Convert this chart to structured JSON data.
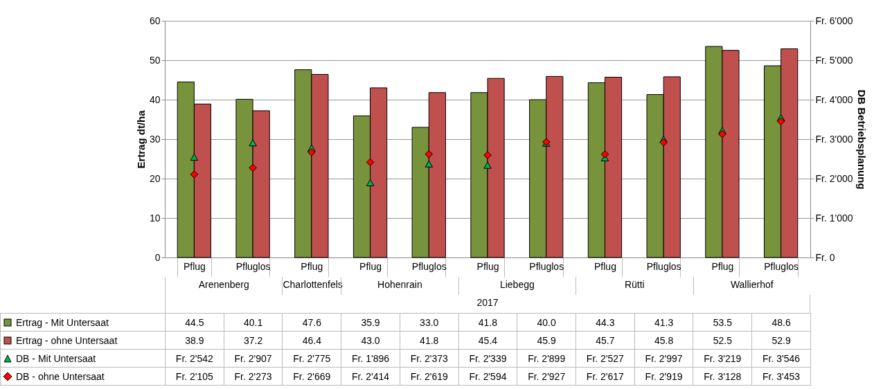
{
  "chart_data": {
    "type": "bar",
    "ylabel": "Ertrag dt/ha",
    "y2label": "DB Betriebsplanung",
    "categories": [
      "Pflug",
      "Pfluglos",
      "Pflug",
      "Pflug",
      "Pfluglos",
      "Pflug",
      "Pfluglos",
      "Pflug",
      "Pfluglos",
      "Pflug",
      "Pfluglos"
    ],
    "annotations": [
      "Arenenberg",
      "Charlottenfels",
      "Hohenrain",
      "Liebegg",
      "Rütti",
      "Wallierhof",
      "2017"
    ],
    "series": [
      {
        "name": "Ertrag - Mit Untersaat",
        "color": "#77933c",
        "values": [
          44.5,
          40.1,
          47.6,
          35.9,
          33.0,
          41.8,
          40.0,
          44.3,
          41.3,
          53.5,
          48.6
        ],
        "value_labels": [
          "44.5",
          "40.1",
          "47.6",
          "35.9",
          "33.0",
          "41.8",
          "40.0",
          "44.3",
          "41.3",
          "53.5",
          "48.6"
        ]
      },
      {
        "name": "Ertrag - ohne Untersaat",
        "color": "#c0504d",
        "values": [
          38.9,
          37.2,
          46.4,
          43.0,
          41.8,
          45.4,
          45.9,
          45.7,
          45.8,
          52.5,
          52.9
        ],
        "value_labels": [
          "38.9",
          "37.2",
          "46.4",
          "43.0",
          "41.8",
          "45.4",
          "45.9",
          "45.7",
          "45.8",
          "52.5",
          "52.9"
        ]
      },
      {
        "name": "DB  - Mit Untersaat",
        "type": "scatter",
        "axis": "y2",
        "marker": "triangle",
        "color": "#00b050",
        "values": [
          2542,
          2907,
          2775,
          1896,
          2373,
          2339,
          2899,
          2527,
          2997,
          3219,
          3546
        ],
        "value_labels": [
          "Fr. 2'542",
          "Fr. 2'907",
          "Fr. 2'775",
          "Fr. 1'896",
          "Fr. 2'373",
          "Fr. 2'339",
          "Fr. 2'899",
          "Fr. 2'527",
          "Fr. 2'997",
          "Fr. 3'219",
          "Fr. 3'546"
        ]
      },
      {
        "name": "DB  - ohne Untersaat",
        "type": "scatter",
        "axis": "y2",
        "marker": "diamond",
        "color": "#ff0000",
        "values": [
          2105,
          2273,
          2669,
          2414,
          2619,
          2594,
          2927,
          2617,
          2919,
          3128,
          3453
        ],
        "value_labels": [
          "Fr. 2'105",
          "Fr. 2'273",
          "Fr. 2'669",
          "Fr. 2'414",
          "Fr. 2'619",
          "Fr. 2'594",
          "Fr. 2'927",
          "Fr. 2'617",
          "Fr. 2'919",
          "Fr. 3'128",
          "Fr. 3'453"
        ]
      }
    ],
    "ylim": [
      0,
      60
    ],
    "yticks": [
      0,
      10,
      20,
      30,
      40,
      50,
      60
    ],
    "y2lim": [
      0,
      6000
    ],
    "y2ticks": [
      {
        "value": 0,
        "label": "Fr. 0"
      },
      {
        "value": 1000,
        "label": "Fr. 1'000"
      },
      {
        "value": 2000,
        "label": "Fr. 2'000"
      },
      {
        "value": 3000,
        "label": "Fr. 3'000"
      },
      {
        "value": 4000,
        "label": "Fr. 4'000"
      },
      {
        "value": 5000,
        "label": "Fr. 5'000"
      },
      {
        "value": 6000,
        "label": "Fr. 6'000"
      }
    ],
    "grid": "y",
    "legend": "bottom"
  }
}
